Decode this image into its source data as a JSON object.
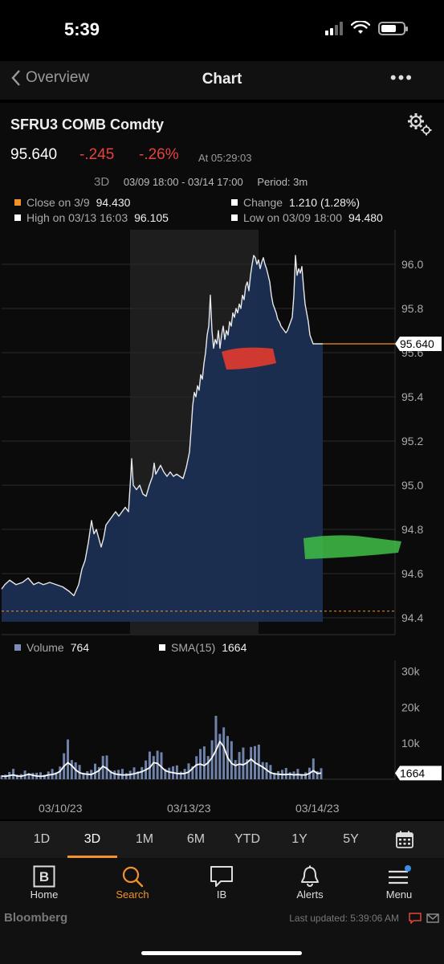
{
  "status": {
    "time": "5:39"
  },
  "nav": {
    "back_label": "Overview",
    "title": "Chart",
    "more": "•••"
  },
  "quote": {
    "ticker": "SFRU3 COMB Comdty",
    "price": "95.640",
    "change": "-.245",
    "change_pct": "-.26%",
    "as_of": "At 05:29:03",
    "period_label": "3D",
    "range": "03/09 18:00 - 03/14 17:00",
    "period": "Period: 3m"
  },
  "legend": {
    "close_label": "Close on 3/9",
    "close_value": "94.430",
    "change_label": "Change",
    "change_value": "1.210 (1.28%)",
    "high_label": "High on 03/13 16:03",
    "high_value": "96.105",
    "low_label": "Low on 03/09 18:00",
    "low_value": "94.480"
  },
  "colors": {
    "accent": "#f3922b",
    "negative": "#e8423c",
    "area": "#1b2f52",
    "marker_red": "#e33b2e",
    "marker_green": "#3fbf48"
  },
  "chart_data": [
    {
      "type": "area",
      "y_ticks": [
        "96.0",
        "95.8",
        "95.6",
        "95.4",
        "95.2",
        "95.0",
        "94.8",
        "94.6",
        "94.4"
      ],
      "ylim": [
        94.36,
        96.12
      ],
      "last_price_label": "95.640",
      "reference_close": 94.43,
      "x": [
        0,
        4,
        10,
        18,
        26,
        33,
        40,
        46,
        52,
        60,
        68,
        76,
        84,
        90,
        96,
        100,
        104,
        108,
        112,
        115,
        118,
        121,
        124,
        127,
        130,
        134,
        138,
        142,
        146,
        150,
        154,
        158,
        161,
        162,
        164,
        168,
        172,
        176,
        180,
        184,
        188,
        190,
        192,
        195,
        198,
        202,
        206,
        210,
        214,
        218,
        222,
        226,
        230,
        234,
        236,
        238,
        240,
        242,
        244,
        246,
        248,
        250,
        252,
        254,
        256,
        258,
        260,
        262,
        264,
        266,
        268,
        270,
        272,
        274,
        276,
        278,
        280,
        282,
        284,
        286,
        288,
        290,
        292,
        294,
        296,
        298,
        300,
        302,
        304,
        306,
        308,
        310,
        312,
        314,
        316,
        318,
        320,
        322,
        324,
        326,
        328,
        330,
        332,
        334,
        336,
        338,
        340,
        342,
        344,
        346,
        348,
        350,
        352,
        354,
        356,
        358,
        360,
        362,
        364,
        366,
        368,
        370,
        372,
        374,
        376,
        378,
        380,
        382,
        384,
        386,
        388,
        390,
        392,
        394,
        396,
        398,
        400
      ],
      "values": [
        94.53,
        94.55,
        94.57,
        94.55,
        94.56,
        94.58,
        94.55,
        94.56,
        94.55,
        94.56,
        94.55,
        94.54,
        94.52,
        94.5,
        94.55,
        94.62,
        94.66,
        94.74,
        94.84,
        94.78,
        94.8,
        94.76,
        94.72,
        94.76,
        94.82,
        94.84,
        94.86,
        94.88,
        94.86,
        94.88,
        94.9,
        94.88,
        95.05,
        95.12,
        95.0,
        94.98,
        95.0,
        94.96,
        94.95,
        95.0,
        95.04,
        95.1,
        95.05,
        95.07,
        95.09,
        95.06,
        95.04,
        95.06,
        95.04,
        95.05,
        95.04,
        95.03,
        95.08,
        95.15,
        95.25,
        95.36,
        95.42,
        95.4,
        95.45,
        95.43,
        95.5,
        95.48,
        95.55,
        95.6,
        95.68,
        95.72,
        95.86,
        95.7,
        95.62,
        95.66,
        95.64,
        95.7,
        95.62,
        95.68,
        95.72,
        95.66,
        95.7,
        95.68,
        95.74,
        95.72,
        95.78,
        95.76,
        95.8,
        95.78,
        95.82,
        95.8,
        95.86,
        95.84,
        95.9,
        95.92,
        95.88,
        95.95,
        96.0,
        96.04,
        96.03,
        96.0,
        96.02,
        95.98,
        96.01,
        96.03,
        96.0,
        95.98,
        95.95,
        95.92,
        95.86,
        95.82,
        95.8,
        95.78,
        95.75,
        95.74,
        95.72,
        95.71,
        95.7,
        95.69,
        95.7,
        95.72,
        95.74,
        95.76,
        95.86,
        96.04,
        95.95,
        95.98,
        95.96,
        95.99,
        95.9,
        95.82,
        95.78,
        95.74,
        95.68,
        95.66,
        95.64,
        95.64,
        95.64,
        95.64,
        95.64,
        95.64,
        95.64
      ]
    },
    {
      "type": "bar",
      "y_ticks": [
        "30k",
        "20k",
        "10k"
      ],
      "ylim": [
        0,
        33000
      ],
      "last_sma_label": "1664",
      "volume_label": "Volume",
      "volume_value": "764",
      "sma_label": "SMA(15)",
      "sma_value": "1664",
      "x_dates": [
        "03/10/23",
        "03/13/23",
        "03/14/23"
      ],
      "sma": [
        900,
        800,
        1000,
        1200,
        900,
        800,
        1100,
        1400,
        1100,
        900,
        800,
        900,
        1200,
        1300,
        1600,
        2200,
        3600,
        4600,
        3800,
        2600,
        1800,
        1500,
        1400,
        1300,
        1800,
        2400,
        3600,
        3000,
        2000,
        1500,
        1300,
        1200,
        1200,
        1300,
        1500,
        1800,
        2100,
        2600,
        3200,
        4600,
        4400,
        3400,
        2400,
        2000,
        1800,
        1600,
        1500,
        1600,
        2000,
        3000,
        4000,
        4200,
        3800,
        4600,
        6000,
        8000,
        10500,
        9000,
        6000,
        4400,
        3800,
        4200,
        4000,
        4600,
        5600,
        4600,
        4000,
        3400,
        2600,
        1800,
        1500,
        1400,
        1300,
        1300,
        1400,
        1200,
        1300,
        1200,
        1200,
        1600,
        2400,
        1600,
        1700
      ]
    }
  ],
  "range_tabs": [
    "1D",
    "3D",
    "1M",
    "6M",
    "YTD",
    "1Y",
    "5Y"
  ],
  "range_active": "3D",
  "tabs": [
    {
      "label": "Home",
      "icon": "home-b-icon"
    },
    {
      "label": "Search",
      "icon": "search-icon"
    },
    {
      "label": "IB",
      "icon": "chat-icon"
    },
    {
      "label": "Alerts",
      "icon": "bell-icon"
    },
    {
      "label": "Menu",
      "icon": "menu-icon"
    }
  ],
  "footer": {
    "brand": "Bloomberg",
    "updated": "Last updated: 5:39:06 AM"
  }
}
